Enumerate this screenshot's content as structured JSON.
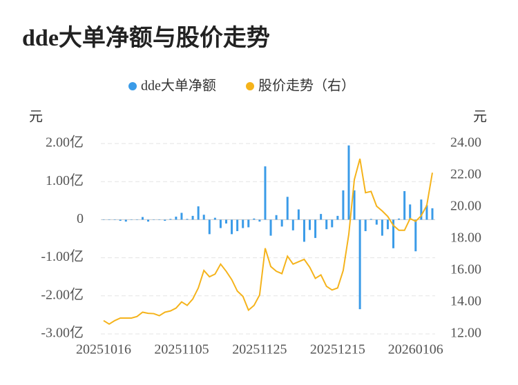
{
  "chart_data": {
    "type": "bar-line",
    "title": "dde大单净额与股价走势",
    "y_label": "元",
    "y2_label": "元",
    "categories": [
      "20251016",
      null,
      null,
      null,
      null,
      null,
      null,
      null,
      null,
      null,
      null,
      null,
      null,
      null,
      "20251105",
      null,
      null,
      null,
      null,
      null,
      null,
      null,
      null,
      null,
      null,
      null,
      null,
      null,
      "20251125",
      null,
      null,
      null,
      null,
      null,
      null,
      null,
      null,
      null,
      null,
      null,
      null,
      null,
      "20251215",
      null,
      null,
      null,
      null,
      null,
      null,
      null,
      null,
      null,
      null,
      null,
      null,
      null,
      "20260106",
      null,
      null,
      null
    ],
    "series": [
      {
        "name": "dde大单净额",
        "color": "#3a9be8",
        "type": "bar",
        "axis": "y",
        "values": [
          0,
          0,
          -0.01,
          -0.03,
          -0.05,
          0,
          0,
          0.07,
          -0.05,
          0,
          0,
          -0.03,
          0.02,
          0.08,
          0.18,
          0.02,
          0.1,
          0.35,
          0.13,
          -0.38,
          0.05,
          -0.22,
          -0.1,
          -0.38,
          -0.3,
          -0.22,
          -0.2,
          0.03,
          -0.05,
          1.4,
          -0.42,
          0.12,
          -0.18,
          0.6,
          -0.28,
          0.27,
          -0.58,
          -0.27,
          -0.48,
          0.15,
          -0.25,
          -0.2,
          0.1,
          0.77,
          1.95,
          0.77,
          -2.35,
          -0.3,
          0.02,
          -0.13,
          -0.42,
          -0.25,
          -0.75,
          0.03,
          0.75,
          0.4,
          -0.83,
          0.53,
          0.38,
          0.3
        ]
      },
      {
        "name": "股价走势（右）",
        "color": "#f5b31b",
        "type": "line",
        "axis": "y2",
        "values": [
          12.84,
          12.62,
          12.84,
          13.0,
          13.0,
          13.0,
          13.1,
          13.37,
          13.3,
          13.28,
          13.15,
          13.37,
          13.45,
          13.63,
          14.02,
          13.8,
          14.2,
          14.9,
          16.0,
          15.6,
          15.77,
          16.4,
          15.95,
          15.42,
          14.7,
          14.37,
          13.5,
          13.8,
          14.46,
          17.4,
          16.25,
          15.95,
          15.8,
          16.9,
          16.4,
          16.55,
          16.7,
          16.2,
          15.5,
          15.72,
          15.0,
          14.77,
          14.9,
          16.0,
          18.27,
          21.73,
          23.04,
          20.9,
          20.98,
          20.05,
          19.75,
          19.4,
          18.84,
          18.53,
          18.53,
          19.27,
          19.1,
          19.45,
          20.1,
          22.16
        ]
      }
    ],
    "ylim": [
      -3,
      2
    ],
    "yticks": [
      {
        "value": 2,
        "label": "2.00亿"
      },
      {
        "value": 1,
        "label": "1.00亿"
      },
      0,
      {
        "value": -1,
        "label": "-1.00亿"
      },
      {
        "value": -2,
        "label": "-2.00亿"
      },
      {
        "value": -3,
        "label": "-3.00亿"
      }
    ],
    "y2lim": [
      12,
      24
    ],
    "y2ticks": [
      {
        "value": 24,
        "label": "24.00"
      },
      {
        "value": 22,
        "label": "22.00"
      },
      {
        "value": 20,
        "label": "20.00"
      },
      {
        "value": 18,
        "label": "18.00"
      },
      {
        "value": 16,
        "label": "16.00"
      },
      {
        "value": 14,
        "label": "14.00"
      },
      {
        "value": 12,
        "label": "12.00"
      }
    ],
    "grid": true,
    "legend": "top"
  }
}
